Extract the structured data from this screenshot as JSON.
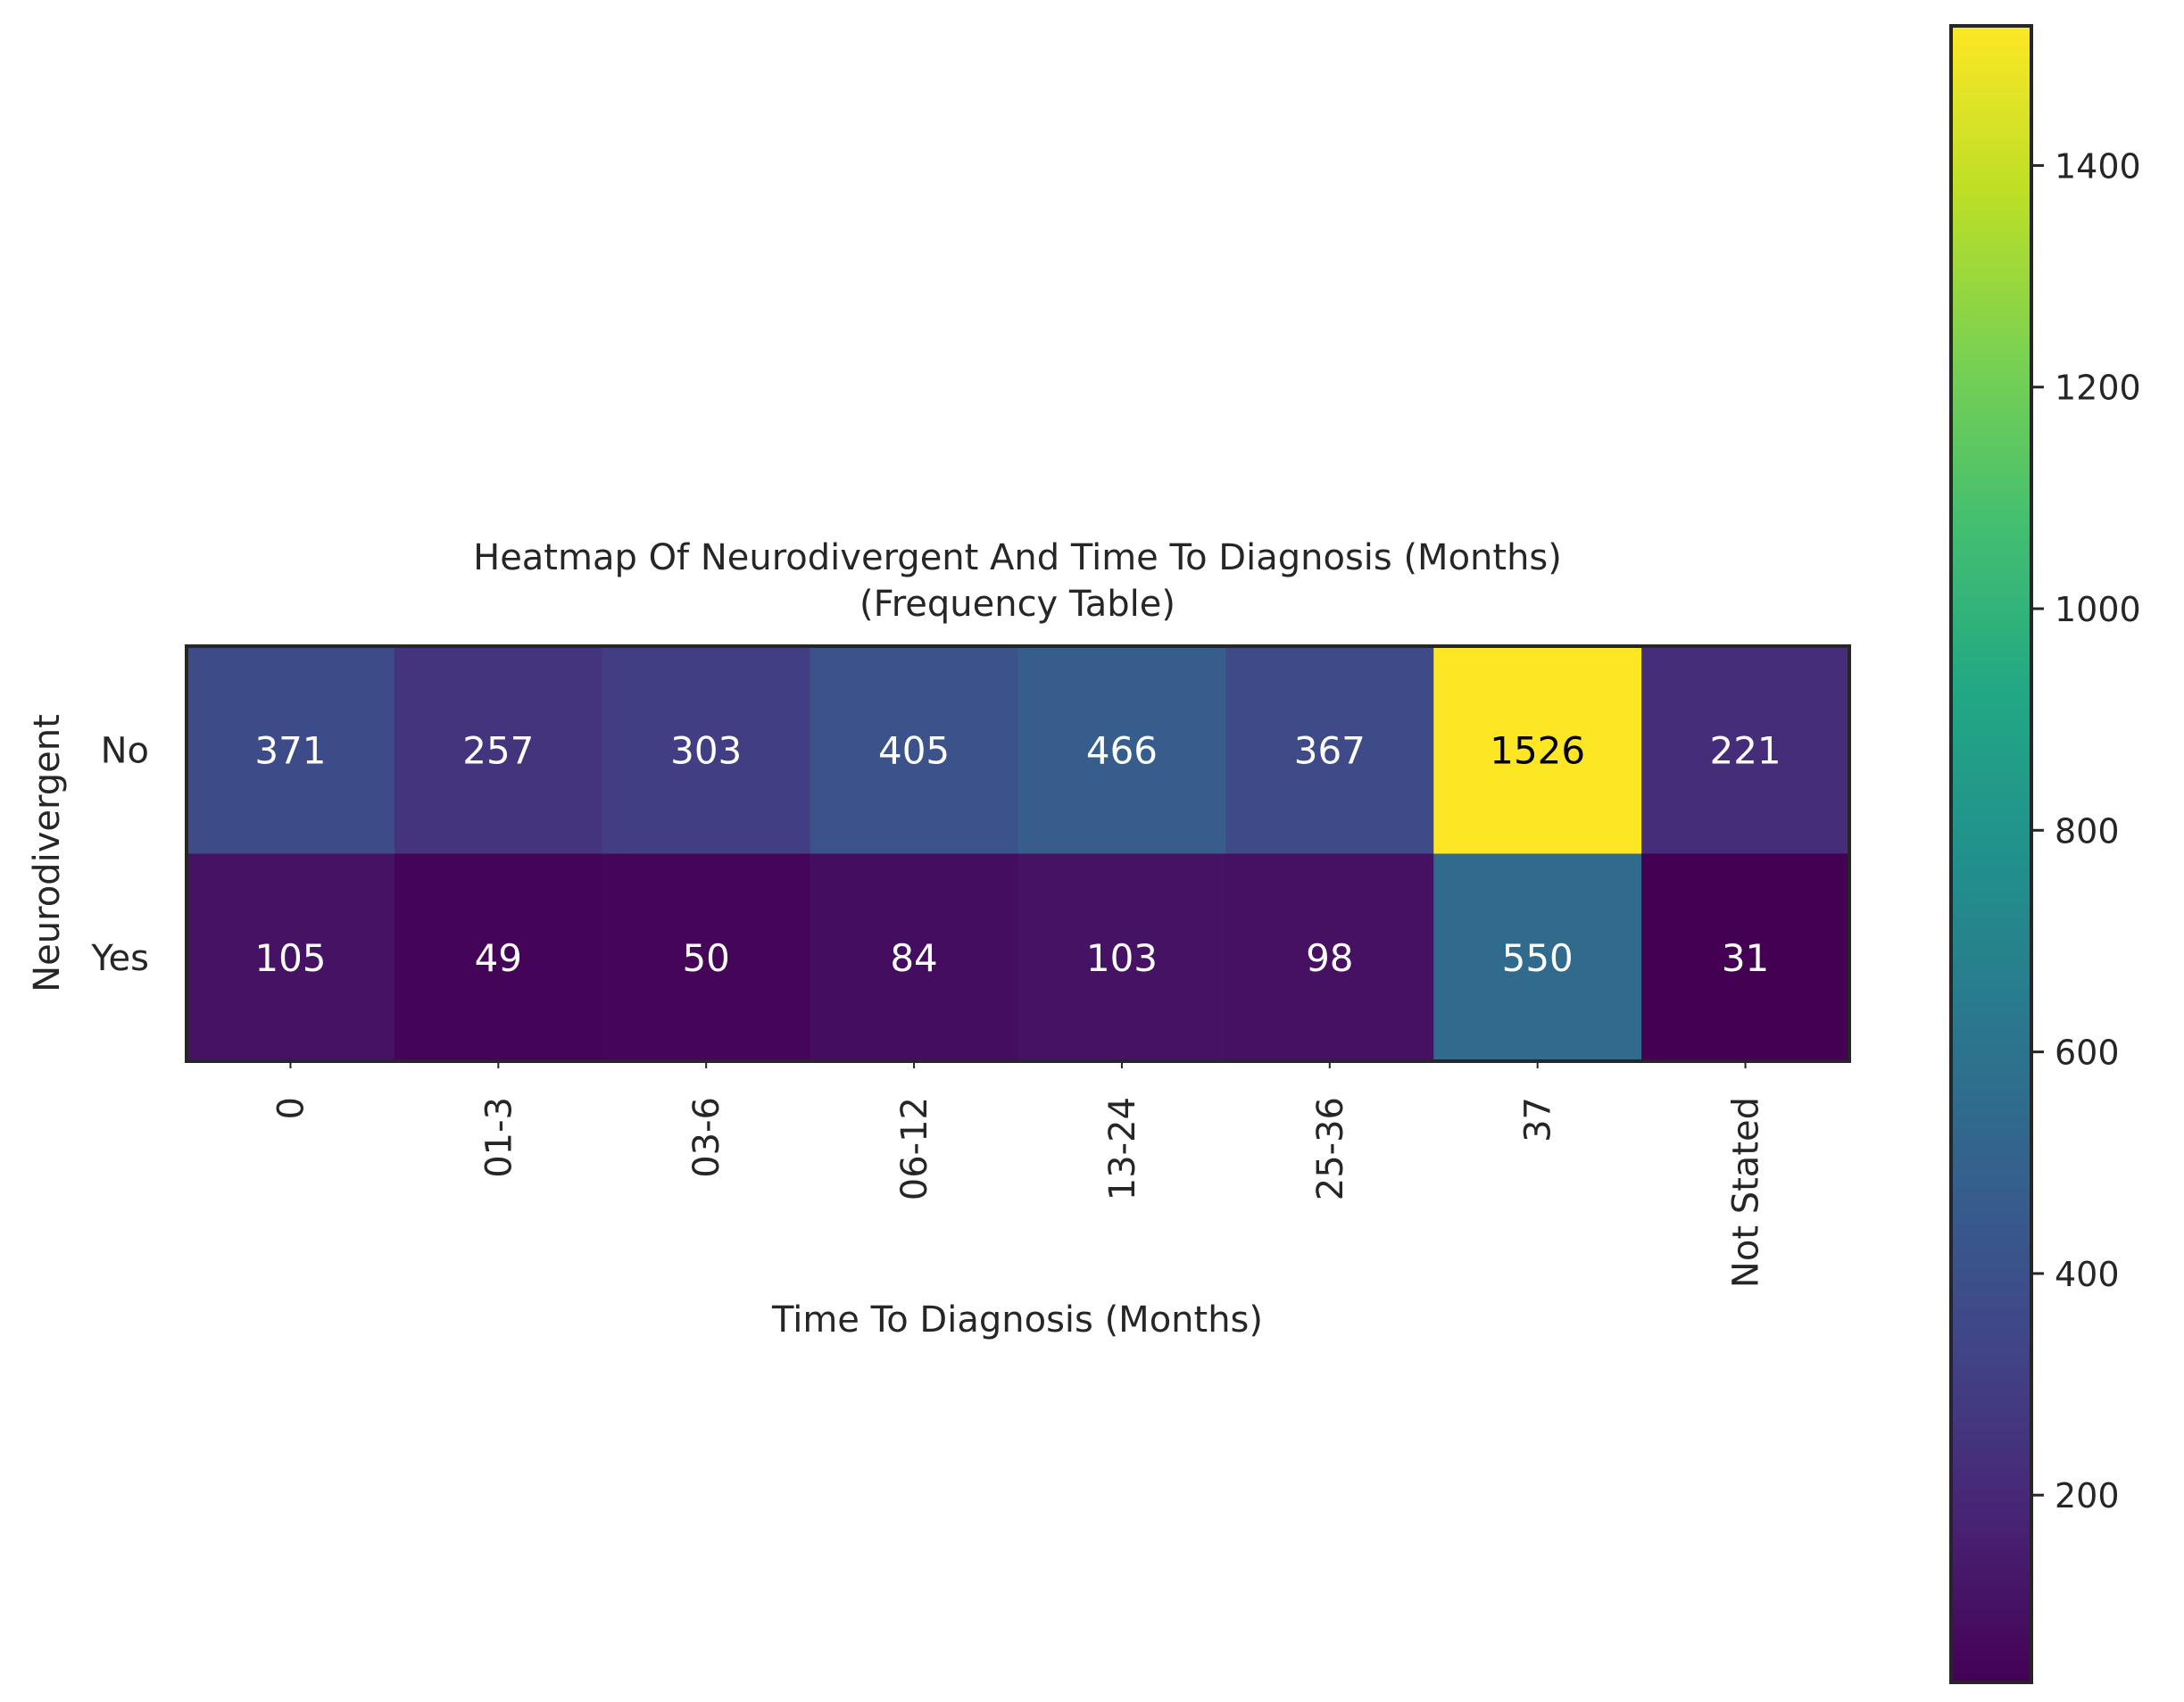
{
  "chart_data": {
    "type": "heatmap",
    "title": "Heatmap Of Neurodivergent And Time To Diagnosis (Months)",
    "subtitle": "(Frequency Table)",
    "xlabel": "Time To Diagnosis (Months)",
    "ylabel": "Neurodivergent",
    "x_categories": [
      "0",
      "01-3",
      "03-6",
      "06-12",
      "13-24",
      "25-36",
      "37",
      "Not Stated"
    ],
    "y_categories": [
      "No",
      "Yes"
    ],
    "values": [
      [
        371,
        257,
        303,
        405,
        466,
        367,
        1526,
        221
      ],
      [
        105,
        49,
        50,
        84,
        103,
        98,
        550,
        31
      ]
    ],
    "colormap": "viridis",
    "color_range": [
      31,
      1526
    ],
    "colorbar_ticks": [
      200,
      400,
      600,
      800,
      1000,
      1200,
      1400
    ],
    "annotation_light_color": "#ffffff",
    "annotation_dark_color": "#000000"
  }
}
